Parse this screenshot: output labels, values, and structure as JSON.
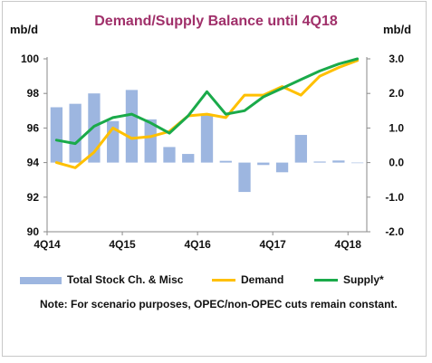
{
  "chart_data": {
    "type": "combo bar + line",
    "title": "Demand/Supply Balance until 4Q18",
    "left_axis": {
      "unit": "mb/d",
      "range": [
        90,
        100
      ],
      "ticks": [
        "90",
        "92",
        "94",
        "96",
        "98",
        "100"
      ]
    },
    "right_axis": {
      "unit": "mb/d",
      "range": [
        -2.0,
        3.0
      ],
      "ticks": [
        "-2.0",
        "-1.0",
        "0.0",
        "1.0",
        "2.0",
        "3.0"
      ]
    },
    "x_tick_labels": [
      "4Q14",
      "4Q15",
      "4Q16",
      "4Q17",
      "4Q18"
    ],
    "x_labels_at_index": [
      0,
      4,
      8,
      12,
      16
    ],
    "quarters": [
      "4Q14",
      "1Q15",
      "2Q15",
      "3Q15",
      "4Q15",
      "1Q16",
      "2Q16",
      "3Q16",
      "4Q16",
      "1Q17",
      "2Q17",
      "3Q17",
      "4Q17",
      "1Q18",
      "2Q18",
      "3Q18",
      "4Q18"
    ],
    "series": [
      {
        "name": "Total Stock Ch. & Misc",
        "kind": "bar",
        "axis": "right",
        "color": "#9db6e0",
        "values": [
          1.6,
          1.7,
          2.0,
          1.2,
          2.1,
          1.25,
          0.45,
          0.25,
          1.4,
          0.05,
          -0.85,
          -0.07,
          -0.28,
          0.8,
          0.03,
          0.06,
          0.0
        ]
      },
      {
        "name": "Demand",
        "kind": "line",
        "axis": "left",
        "color": "#ffc000",
        "values": [
          94.0,
          93.7,
          94.6,
          96.0,
          95.4,
          95.5,
          95.8,
          96.7,
          96.8,
          96.6,
          97.9,
          97.9,
          98.4,
          97.9,
          99.0,
          99.5,
          99.9
        ]
      },
      {
        "name": "Supply*",
        "kind": "line",
        "axis": "left",
        "color": "#1aaa4a",
        "values": [
          95.3,
          95.1,
          96.1,
          96.6,
          96.8,
          96.3,
          95.7,
          96.7,
          98.1,
          96.8,
          97.0,
          97.8,
          98.3,
          98.8,
          99.3,
          99.7,
          100.0
        ]
      }
    ],
    "note": "Note: For scenario purposes, OPEC/non-OPEC cuts remain constant."
  }
}
